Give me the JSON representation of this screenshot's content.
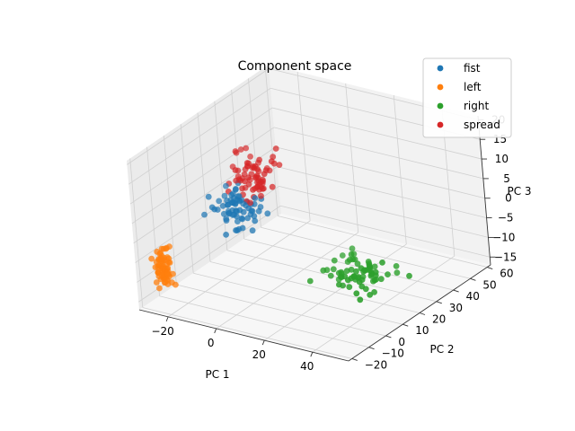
{
  "chart_data": {
    "type": "scatter",
    "projection": "3d",
    "title": "Component space",
    "xlabel": "PC 1",
    "ylabel": "PC 2",
    "zlabel": "PC 3",
    "xlim": [
      -32,
      55
    ],
    "ylim": [
      -22,
      62
    ],
    "zlim": [
      -17,
      21
    ],
    "xticks": [
      -20,
      0,
      20,
      40
    ],
    "yticks": [
      -20,
      -10,
      0,
      10,
      20,
      30,
      40,
      50,
      60
    ],
    "zticks": [
      -15,
      -10,
      -5,
      0,
      5,
      10,
      15,
      20
    ],
    "grid": true,
    "legend": {
      "placement": "top-right"
    },
    "series": [
      {
        "name": "fist",
        "color": "#1f77b4",
        "center": [
          -12,
          10,
          2
        ],
        "spread": [
          6,
          7,
          4
        ],
        "count": 70
      },
      {
        "name": "left",
        "color": "#ff7f0e",
        "center": [
          -29,
          -10,
          -9
        ],
        "spread": [
          1.5,
          3,
          3.5
        ],
        "count": 70
      },
      {
        "name": "right",
        "color": "#2ca02c",
        "center": [
          28,
          24,
          -12
        ],
        "spread": [
          9,
          8,
          2.5
        ],
        "count": 70
      },
      {
        "name": "spread",
        "color": "#d62728",
        "center": [
          -9,
          17,
          9
        ],
        "spread": [
          6,
          7,
          4
        ],
        "count": 70
      }
    ]
  }
}
